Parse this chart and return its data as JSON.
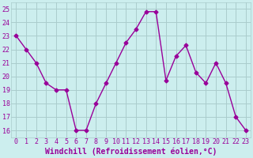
{
  "x": [
    0,
    1,
    2,
    3,
    4,
    5,
    6,
    7,
    8,
    9,
    10,
    11,
    12,
    13,
    14,
    15,
    16,
    17,
    18,
    19,
    20,
    21,
    22,
    23
  ],
  "y": [
    23,
    22,
    21,
    19.5,
    19,
    19,
    16,
    16,
    18,
    19.5,
    21,
    22.5,
    23.5,
    24.8,
    24.8,
    19.7,
    21.5,
    22.3,
    20.3,
    19.5,
    21,
    19.5,
    17,
    16
  ],
  "line_color": "#990099",
  "marker": "D",
  "marker_size": 2.5,
  "bg_color": "#cceeee",
  "grid_color": "#aacccc",
  "text_color": "#990099",
  "xlabel": "Windchill (Refroidissement éolien,°C)",
  "ylim": [
    15.5,
    25.5
  ],
  "xlim": [
    -0.5,
    23.5
  ],
  "yticks": [
    16,
    17,
    18,
    19,
    20,
    21,
    22,
    23,
    24,
    25
  ],
  "xticks": [
    0,
    1,
    2,
    3,
    4,
    5,
    6,
    7,
    8,
    9,
    10,
    11,
    12,
    13,
    14,
    15,
    16,
    17,
    18,
    19,
    20,
    21,
    22,
    23
  ],
  "xtick_labels": [
    "0",
    "1",
    "2",
    "3",
    "4",
    "5",
    "6",
    "7",
    "8",
    "9",
    "10",
    "11",
    "12",
    "13",
    "14",
    "15",
    "16",
    "17",
    "18",
    "19",
    "20",
    "21",
    "22",
    "23"
  ],
  "tick_fontsize": 6,
  "label_fontsize": 7,
  "linewidth": 1.0
}
